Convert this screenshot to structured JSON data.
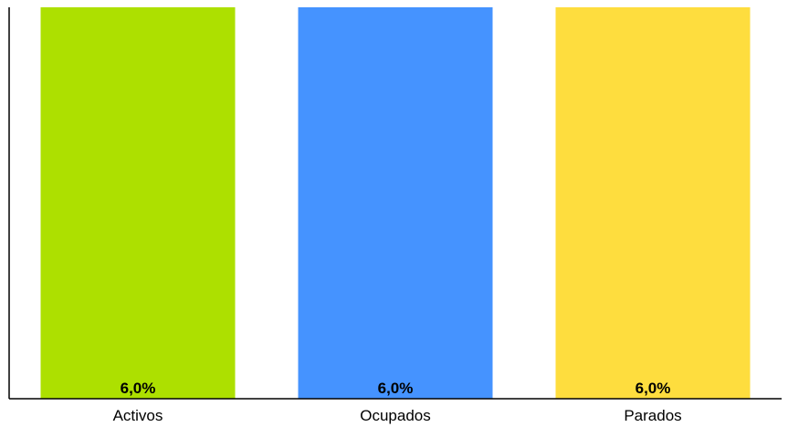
{
  "chart_data": {
    "type": "bar",
    "categories": [
      "Activos",
      "Ocupados",
      "Parados"
    ],
    "values": [
      6.0,
      6.0,
      6.0
    ],
    "value_labels": [
      "6,0%",
      "6,0%",
      "6,0%"
    ],
    "colors": [
      "#ADE000",
      "#4593FF",
      "#FEDD3E"
    ],
    "title": "",
    "xlabel": "",
    "ylabel": "",
    "ylim": [
      0,
      6.0
    ],
    "grid": false,
    "legend": "none"
  }
}
